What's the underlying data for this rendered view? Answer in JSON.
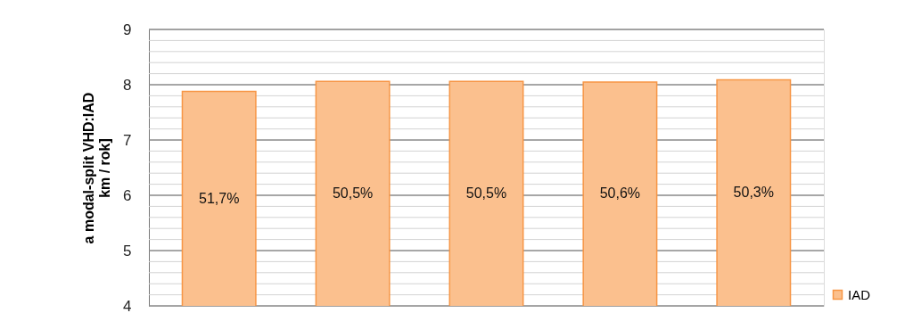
{
  "chart_data": {
    "type": "bar",
    "ylabel": "a modal-split VHD:IAD\nkm / rok]",
    "categories": [
      null,
      null,
      null,
      null,
      null
    ],
    "series": [
      {
        "name": "IAD",
        "color": "#fbc08e",
        "values": [
          7.88,
          8.06,
          8.06,
          8.05,
          8.09
        ]
      }
    ],
    "annotations": [
      "51,7%",
      "50,5%",
      "50,5%",
      "50,6%",
      "50,3%"
    ],
    "ylim": [
      4,
      9
    ],
    "yticks": [
      4,
      {
        "value": 4.2,
        "label": null
      },
      {
        "value": 4.4,
        "label": null
      },
      {
        "value": 4.6,
        "label": null
      },
      {
        "value": 4.8,
        "label": null
      },
      5,
      {
        "value": 5.2,
        "label": null
      },
      {
        "value": 5.4,
        "label": null
      },
      {
        "value": 5.6,
        "label": null
      },
      {
        "value": 5.8,
        "label": null
      },
      6,
      {
        "value": 6.2,
        "label": null
      },
      {
        "value": 6.4,
        "label": null
      },
      {
        "value": 6.6,
        "label": null
      },
      {
        "value": 6.8,
        "label": null
      },
      7,
      {
        "value": 7.2,
        "label": null
      },
      {
        "value": 7.4,
        "label": null
      },
      {
        "value": 7.6,
        "label": null
      },
      {
        "value": 7.8,
        "label": null
      },
      8,
      {
        "value": 8.2,
        "label": null
      },
      {
        "value": 8.4,
        "label": null
      },
      {
        "value": 8.6,
        "label": null
      },
      {
        "value": 8.8,
        "label": null
      },
      9
    ],
    "grid": "y",
    "legend": "right"
  }
}
